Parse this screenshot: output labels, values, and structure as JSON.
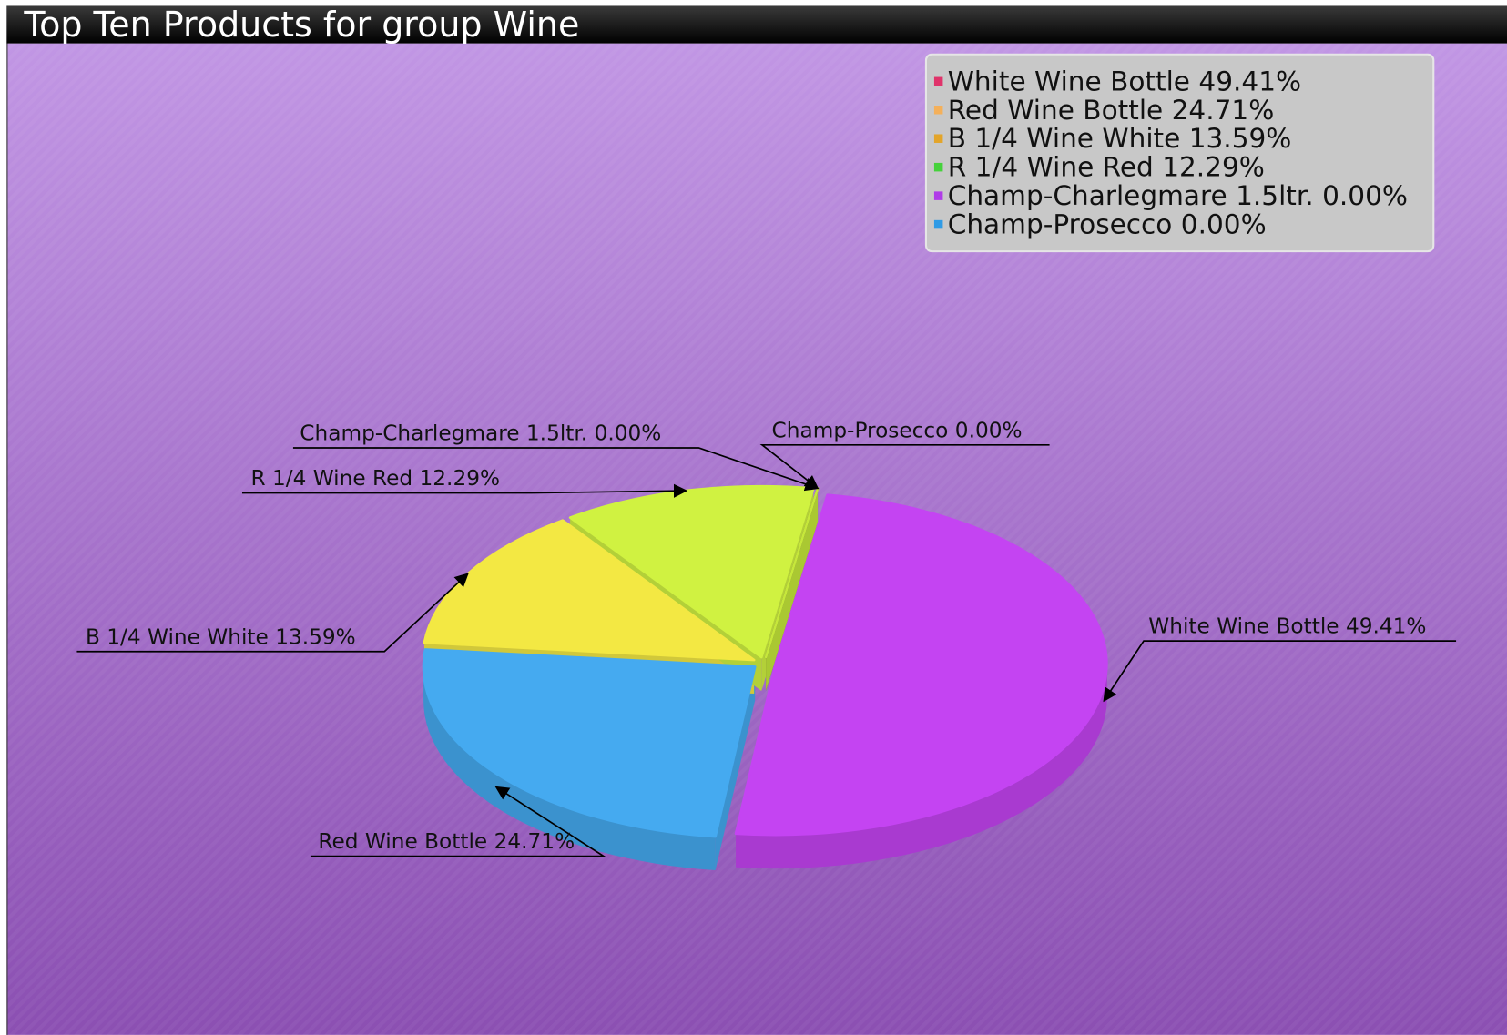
{
  "chart_data": {
    "type": "pie",
    "title": "Top Ten Products for group Wine",
    "categories": [
      "White Wine Bottle",
      "Red Wine Bottle",
      "B 1/4 Wine White",
      "R 1/4 Wine Red",
      "Champ-Charlegmare 1.5ltr.",
      "Champ-Prosecco"
    ],
    "values": [
      49.41,
      24.71,
      13.59,
      12.29,
      0,
      0
    ],
    "value_labels": [
      "49.41%",
      "24.71%",
      "13.59%",
      "12.29%",
      "0.00%",
      "0.00%"
    ],
    "colors": [
      "#c444f2",
      "#45aaf0",
      "#f3e843",
      "#d0f241",
      "#6b5a4a",
      "#c6e83a"
    ],
    "legend_colors": [
      "#e0336a",
      "#f4b05a",
      "#e3a52a",
      "#45d23b",
      "#b03ce8",
      "#2f9be6"
    ],
    "legend": "top-right"
  }
}
